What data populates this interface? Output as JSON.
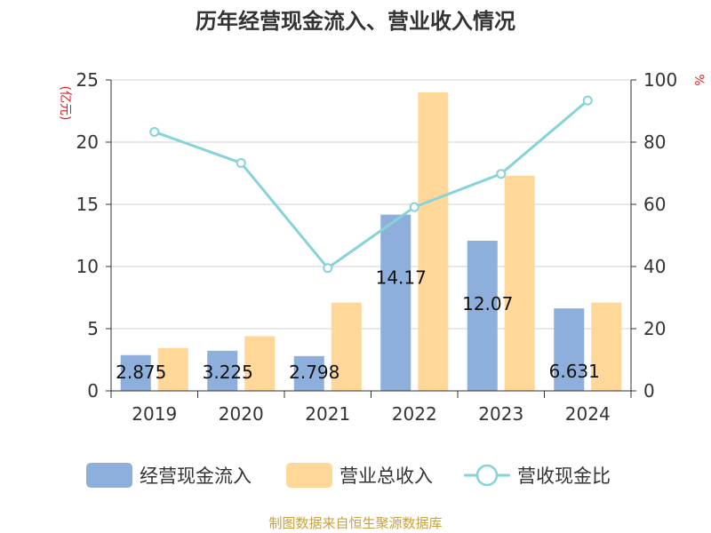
{
  "chart_data": {
    "type": "bar",
    "title": "历年经营现金流入、营业收入情况",
    "categories": [
      "2019",
      "2020",
      "2021",
      "2022",
      "2023",
      "2024"
    ],
    "y_left_unit": "(亿元)",
    "y_right_unit": "%",
    "ylim_left": [
      0,
      25
    ],
    "ylim_right": [
      0,
      100
    ],
    "y_left_ticks": [
      "0",
      "5",
      "10",
      "15",
      "20",
      "25"
    ],
    "y_right_ticks": [
      "0",
      "20",
      "40",
      "60",
      "80",
      "100"
    ],
    "grid": true,
    "legend_position": "bottom",
    "series": [
      {
        "name": "经营现金流入",
        "type": "bar",
        "axis": "left",
        "color": "#8eaedb",
        "values": [
          2.875,
          3.225,
          2.798,
          14.17,
          12.07,
          6.631
        ],
        "labels": [
          "2.875",
          "3.225",
          "2.798",
          "14.17",
          "12.07",
          "6.631"
        ]
      },
      {
        "name": "营业总收入",
        "type": "bar",
        "axis": "left",
        "color": "#ffd899",
        "values": [
          3.45,
          4.4,
          7.1,
          24.0,
          17.3,
          7.1
        ]
      },
      {
        "name": "营收现金比",
        "type": "line",
        "axis": "right",
        "color": "#86d3d8",
        "values": [
          83.3,
          73.3,
          39.5,
          59.1,
          69.8,
          93.4
        ]
      }
    ]
  },
  "source": "制图数据来自恒生聚源数据库"
}
